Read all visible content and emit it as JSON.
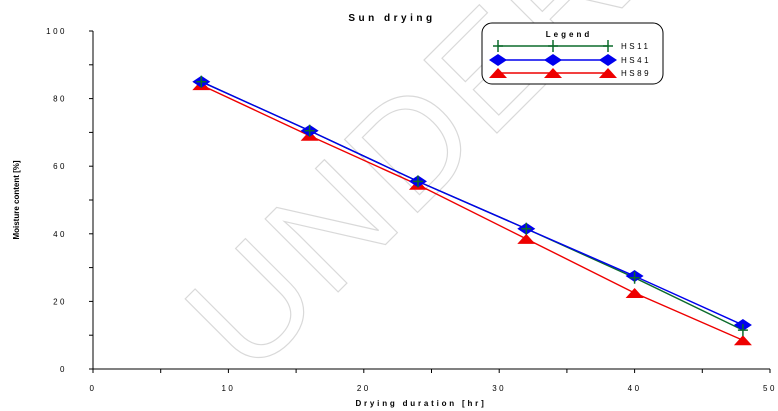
{
  "watermark": "UNDER PEER REVIEW",
  "chart_data": {
    "type": "line",
    "title": "Sun drying",
    "xlabel": "Drying duration [hr]",
    "ylabel": "Moisture content [%]",
    "xlim": [
      0,
      50
    ],
    "ylim": [
      0,
      100
    ],
    "x_ticks": [
      "0",
      "10",
      "20",
      "30",
      "40",
      "50"
    ],
    "y_ticks": [
      "0",
      "20",
      "40",
      "60",
      "80",
      "100"
    ],
    "x_tick_values": [
      0,
      10,
      20,
      30,
      40,
      50
    ],
    "y_tick_values": [
      0,
      20,
      40,
      60,
      80,
      100
    ],
    "legend_title": "Legend",
    "legend_position": "top-right",
    "grid": false,
    "x": [
      8,
      16,
      24,
      32,
      40,
      48
    ],
    "series": [
      {
        "name": "HS11",
        "color": "#0b6b2b",
        "marker": "plus",
        "values": [
          85,
          70.5,
          55.5,
          41.5,
          27,
          11.5
        ]
      },
      {
        "name": "HS41",
        "color": "#0000ee",
        "marker": "diamond",
        "values": [
          85,
          70.5,
          55.5,
          41.5,
          27.5,
          13
        ]
      },
      {
        "name": "HS89",
        "color": "#ee0000",
        "marker": "triangle",
        "values": [
          84,
          69,
          54.5,
          38.5,
          22.5,
          8.5
        ]
      }
    ]
  }
}
